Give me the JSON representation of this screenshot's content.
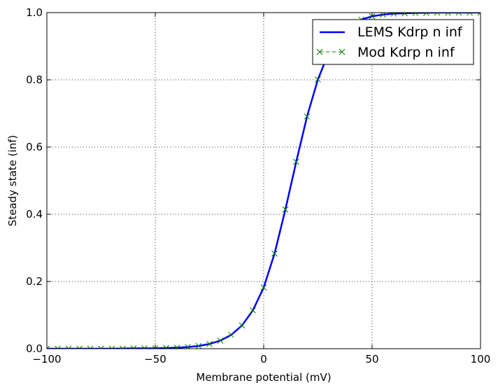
{
  "chart_data": {
    "type": "line",
    "title": "",
    "xlabel": "Membrane potential (mV)",
    "ylabel": "Steady state (inf)",
    "xlim": [
      -100,
      100
    ],
    "ylim": [
      0.0,
      1.0
    ],
    "xticks": [
      -100,
      -50,
      0,
      50,
      100
    ],
    "xtick_labels": [
      "−100",
      "−50",
      "0",
      "50",
      "100"
    ],
    "yticks": [
      0.0,
      0.2,
      0.4,
      0.6,
      0.8,
      1.0
    ],
    "ytick_labels": [
      "0.0",
      "0.2",
      "0.4",
      "0.6",
      "0.8",
      "1.0"
    ],
    "grid": true,
    "legend_position": "top-right",
    "series": [
      {
        "name": "LEMS Kdrp n inf",
        "style": "line",
        "color": "#0000ff",
        "x": [
          -100,
          -90,
          -80,
          -70,
          -60,
          -50,
          -40,
          -35,
          -30,
          -25,
          -20,
          -15,
          -10,
          -5,
          0,
          5,
          10,
          15,
          20,
          25,
          30,
          35,
          40,
          45,
          50,
          55,
          60,
          70,
          80,
          90,
          100
        ],
        "values": [
          0.0,
          0.0,
          0.0,
          0.0,
          0.001,
          0.001,
          0.003,
          0.005,
          0.008,
          0.014,
          0.024,
          0.041,
          0.069,
          0.114,
          0.182,
          0.283,
          0.414,
          0.556,
          0.691,
          0.801,
          0.881,
          0.932,
          0.962,
          0.979,
          0.989,
          0.994,
          0.997,
          0.999,
          1.0,
          1.0,
          1.0
        ]
      },
      {
        "name": "Mod Kdrp n inf",
        "style": "markers",
        "marker": "x",
        "color": "#008000",
        "x": [
          -100,
          -95,
          -90,
          -85,
          -80,
          -75,
          -70,
          -65,
          -60,
          -55,
          -50,
          -45,
          -40,
          -35,
          -30,
          -25,
          -20,
          -15,
          -10,
          -5,
          0,
          5,
          10,
          15,
          20,
          25,
          30,
          35,
          40,
          45,
          50,
          55,
          60,
          65,
          70,
          75,
          80,
          85,
          90,
          95,
          100
        ],
        "values": [
          0.0,
          0.0,
          0.0,
          0.0,
          0.0,
          0.0,
          0.0,
          0.0,
          0.001,
          0.001,
          0.001,
          0.002,
          0.003,
          0.005,
          0.008,
          0.014,
          0.024,
          0.041,
          0.069,
          0.114,
          0.182,
          0.283,
          0.414,
          0.556,
          0.691,
          0.801,
          0.881,
          0.932,
          0.962,
          0.979,
          0.989,
          0.994,
          0.997,
          0.998,
          0.999,
          0.999,
          1.0,
          1.0,
          1.0,
          1.0,
          1.0
        ]
      }
    ]
  }
}
